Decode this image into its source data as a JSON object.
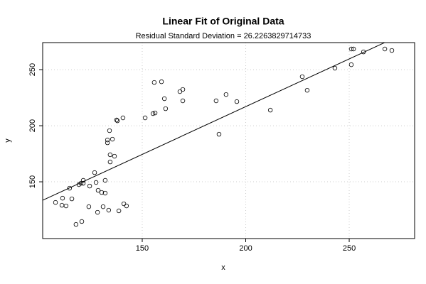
{
  "chart_data": {
    "type": "scatter",
    "title": "Linear Fit of Original Data",
    "subtitle": "Residual Standard Deviation =  26.2263829714733",
    "x_label": "x",
    "y_label": "y",
    "x": [
      108.1,
      111.2,
      111.5,
      113.2,
      114.9,
      116.0,
      118.0,
      119.4,
      120.4,
      120.8,
      121.5,
      121.5,
      124.2,
      124.6,
      127.0,
      127.7,
      128.4,
      128.7,
      130.4,
      131.1,
      132.1,
      132.1,
      133.2,
      133.2,
      133.8,
      134.2,
      134.5,
      134.5,
      135.6,
      136.6,
      137.6,
      138.0,
      138.7,
      140.7,
      141.1,
      142.4,
      151.4,
      155.2,
      156.2,
      155.8,
      159.3,
      160.7,
      161.3,
      168.2,
      169.6,
      169.6,
      185.7,
      187.1,
      190.5,
      195.7,
      211.9,
      227.3,
      229.7,
      243.1,
      251.0,
      251.0,
      252.1,
      256.9,
      267.2,
      270.6
    ],
    "values": [
      131.6,
      129.1,
      135.4,
      128.5,
      144.3,
      134.8,
      112.0,
      147.5,
      148.7,
      114.6,
      148.7,
      151.3,
      127.8,
      146.2,
      158.2,
      149.4,
      122.8,
      142.4,
      140.5,
      127.8,
      139.9,
      151.3,
      184.8,
      187.3,
      124.7,
      195.6,
      174.1,
      167.7,
      188.0,
      172.8,
      205.1,
      204.4,
      124.1,
      207.0,
      130.4,
      128.5,
      207.0,
      210.8,
      211.4,
      238.6,
      239.2,
      224.1,
      215.2,
      230.4,
      232.3,
      222.2,
      222.2,
      192.4,
      227.8,
      221.5,
      213.9,
      243.7,
      231.6,
      251.3,
      254.4,
      268.4,
      268.4,
      265.8,
      268.4,
      267.1
    ],
    "fit": {
      "intercept": 46.8,
      "slope": 0.851
    },
    "xlim": [
      101.9,
      281.6
    ],
    "ylim": [
      99.4,
      274.1
    ],
    "xticks": [
      150,
      200,
      250
    ],
    "yticks": [
      150,
      200,
      250
    ],
    "grid": true
  }
}
